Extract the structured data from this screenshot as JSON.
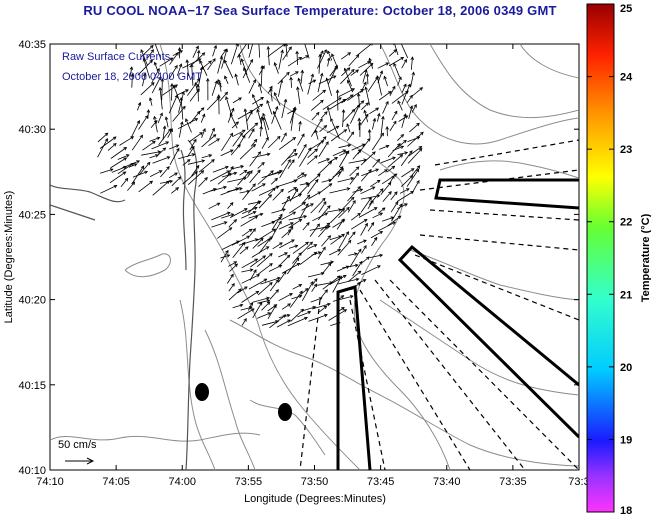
{
  "title": "RU COOL  NOAA−17  Sea Surface Temperature:  October 18, 2006 0349 GMT",
  "legend": {
    "line1": "Raw Surface Currents",
    "line2": "October 18, 2006 0400 GMT",
    "scale_label": "50 cm/s"
  },
  "axes": {
    "xlabel": "Longitude (Degrees:Minutes)",
    "ylabel": "Latitude (Degrees:Minutes)",
    "xticks": [
      "74:10",
      "74:05",
      "74:00",
      "73:55",
      "73:50",
      "73:45",
      "73:40",
      "73:35",
      "73:3"
    ],
    "yticks": [
      "40:35",
      "40:30",
      "40:25",
      "40:20",
      "40:15",
      "40:10"
    ]
  },
  "colorbar": {
    "label": "Temperature (°C)",
    "ticks": [
      "25",
      "24",
      "23",
      "22",
      "21",
      "20",
      "19",
      "18"
    ],
    "range": [
      18,
      25
    ]
  },
  "colors": {
    "title": "#1a1a9c",
    "contour": "#8c8c8c",
    "land": "#ffffff",
    "sea": "#ffffff"
  }
}
